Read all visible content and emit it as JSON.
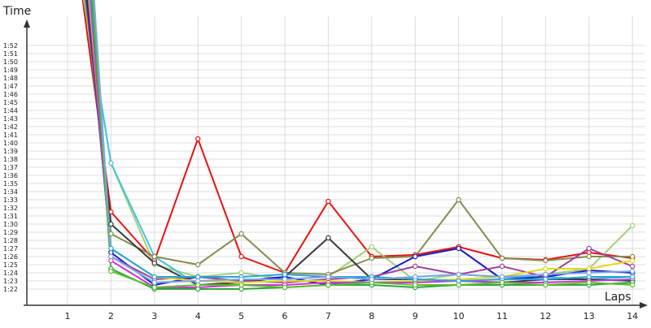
{
  "chart_data": {
    "type": "line",
    "ylabel": "Time",
    "xlabel": "Laps",
    "x": [
      1,
      2,
      3,
      4,
      5,
      6,
      7,
      8,
      9,
      10,
      11,
      12,
      13,
      14
    ],
    "yticks": [
      "1:22",
      "1:23",
      "1:24",
      "1:25",
      "1:26",
      "1:27",
      "1:28",
      "1:29",
      "1:30",
      "1:31",
      "1:32",
      "1:33",
      "1:34",
      "1:35",
      "1:36",
      "1:37",
      "1:38",
      "1:39",
      "1:40",
      "1:41",
      "1:42",
      "1:43",
      "1:44",
      "1:45",
      "1:46",
      "1:47",
      "1:48",
      "1:49",
      "1:50",
      "1:51",
      "1:52"
    ],
    "ylim": [
      "1:21",
      "1:53"
    ],
    "grid": true,
    "series": [
      {
        "color": "#e8130f",
        "values": [
          null,
          "1:31.5",
          "1:25.5",
          "1:40.5",
          "1:26",
          "1:24",
          "1:32.8",
          "1:26",
          "1:26.2",
          "1:27.2",
          "1:25.8",
          "1:25.6",
          "1:26.5",
          "1:25.8"
        ]
      },
      {
        "color": "#a6cf7a",
        "values": [
          null,
          "1:37.5",
          "1:25",
          "1:23.5",
          "1:24",
          "1:23.2",
          "1:23.5",
          "1:27.2",
          "1:23",
          "1:23.8",
          "1:23.5",
          "1:23.8",
          "1:24.5",
          "1:29.8"
        ]
      },
      {
        "color": "#3fc6d8",
        "values": [
          null,
          "1:37.5",
          "1:26",
          "1:22.5",
          "1:22.8",
          "1:23.5",
          "1:22.5",
          "1:23.2",
          "1:23.5",
          "1:23.8",
          "1:23.5",
          "1:23.5",
          "1:23.2",
          "1:23.5"
        ]
      },
      {
        "color": "#868b4e",
        "values": [
          null,
          "1:28.8",
          "1:26",
          "1:25",
          "1:28.8",
          "1:24",
          "1:23.8",
          "1:25.8",
          "1:26",
          "1:33",
          "1:25.8",
          "1:25.5",
          "1:26",
          "1:26"
        ]
      },
      {
        "color": "#3a3a3a",
        "values": [
          null,
          "1:30",
          "1:25.2",
          "1:22.5",
          "1:22.8",
          "1:23.5",
          "1:28.3",
          "1:23.2",
          "1:23.2",
          "1:23",
          "1:22.8",
          "1:23.2",
          "1:23.2",
          "1:23"
        ]
      },
      {
        "color": "#1c1cc8",
        "values": [
          null,
          "1:26.5",
          "1:22.5",
          "1:23.5",
          "1:23",
          "1:23.5",
          "1:22.5",
          "1:23.2",
          "1:26",
          "1:27",
          "1:23.2",
          "1:23.5",
          "1:24.3",
          "1:24"
        ]
      },
      {
        "color": "#a0449a",
        "values": [
          null,
          "1:26",
          "1:23.2",
          "1:23.5",
          "1:23",
          "1:22.8",
          "1:23.2",
          "1:23.5",
          "1:24.8",
          "1:23.8",
          "1:24.8",
          "1:23.5",
          "1:27",
          "1:24.8"
        ]
      },
      {
        "color": "#e0d81a",
        "values": [
          null,
          "1:27",
          "1:23.5",
          "1:23",
          "1:22.8",
          "1:23",
          "1:23",
          "1:22.8",
          "1:23",
          "1:23.2",
          "1:23.5",
          "1:24.5",
          "1:24.5",
          "1:25.5"
        ]
      },
      {
        "color": "#d232d6",
        "values": [
          null,
          "1:25.5",
          "1:22.2",
          "1:22.2",
          "1:22.5",
          "1:22.5",
          "1:22.8",
          "1:22.8",
          "1:22.8",
          "1:23",
          "1:22.8",
          "1:22.8",
          "1:23",
          "1:23.2"
        ]
      },
      {
        "color": "#26a4d9",
        "values": [
          null,
          "1:27",
          "1:23.5",
          "1:23.5",
          "1:23.5",
          "1:23.8",
          "1:23.5",
          "1:23.5",
          "1:23.2",
          "1:23",
          "1:23.2",
          "1:23.2",
          "1:23.5",
          "1:23.5"
        ]
      },
      {
        "color": "#2fa640",
        "values": [
          null,
          "1:24.5",
          "1:22",
          "1:22",
          "1:22",
          "1:22.2",
          "1:22.5",
          "1:22.5",
          "1:22.2",
          "1:22.5",
          "1:22.5",
          "1:22.5",
          "1:22.5",
          "1:22.8"
        ]
      },
      {
        "color": "#5cbd2e",
        "values": [
          null,
          "1:24.2",
          "1:22.2",
          "1:22.5",
          "1:22.5",
          "1:22.2",
          "1:22.5",
          "1:22.8",
          "1:22.5",
          "1:22.5",
          "1:22.8",
          "1:22.5",
          "1:22.8",
          "1:22.5"
        ]
      },
      {
        "color": "#7ba5e8",
        "values": [
          null,
          "1:26",
          "1:22.8",
          "1:23",
          "1:23.2",
          "1:23.2",
          "1:23.5",
          "1:23.2",
          "1:23.5",
          "1:23.8",
          "1:23.5",
          "1:23.8",
          "1:24",
          "1:24.2"
        ]
      }
    ]
  }
}
